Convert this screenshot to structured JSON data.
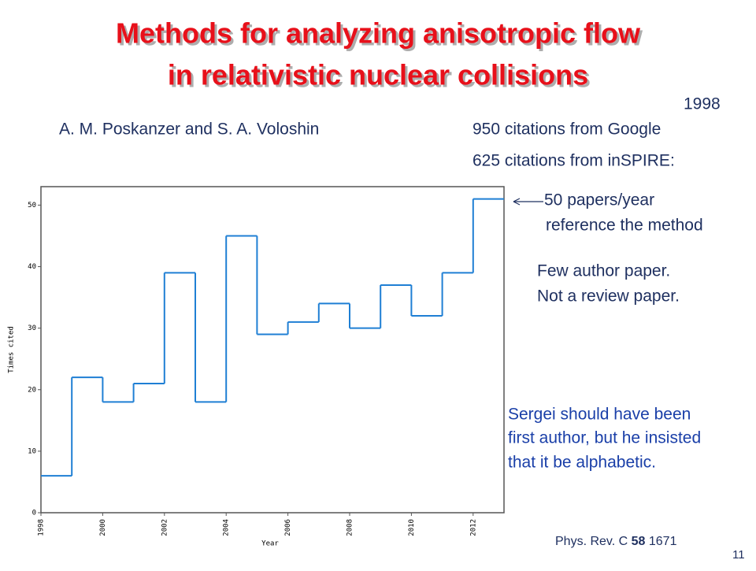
{
  "slide": {
    "title_lines": [
      "Methods for analyzing anisotropic flow",
      "in relativistic nuclear collisions"
    ],
    "year": "1998",
    "authors": "A. M. Poskanzer and S. A. Voloshin",
    "citations_google": "950 citations from Google",
    "citations_inspire": "625 citations from inSPIRE:",
    "note_papers": [
      "50 papers/year",
      "reference the method"
    ],
    "note_kind": [
      "Few author paper.",
      "Not a review paper."
    ],
    "note_sergei": [
      "Sergei should have been",
      "first author, but he insisted",
      "that it be alphabetic."
    ],
    "reference": {
      "journal": "Phys. Rev. C",
      "volume": "58",
      "page": "1671"
    },
    "page_number": "11"
  },
  "chart_data": {
    "type": "step",
    "x_label": "Year",
    "y_label": "Times cited",
    "x": [
      1998,
      1999,
      2000,
      2001,
      2002,
      2003,
      2004,
      2005,
      2006,
      2007,
      2008,
      2009,
      2010,
      2011,
      2012
    ],
    "values": [
      6,
      22,
      18,
      21,
      39,
      18,
      45,
      29,
      31,
      34,
      30,
      37,
      32,
      39,
      51
    ],
    "color": "#1f7fd4",
    "xlim": [
      1998,
      2013
    ],
    "ylim": [
      0,
      53
    ],
    "xticks": [
      1998,
      2000,
      2002,
      2004,
      2006,
      2008,
      2010,
      2012
    ],
    "yticks": [
      0,
      10,
      20,
      30,
      40,
      50
    ]
  }
}
